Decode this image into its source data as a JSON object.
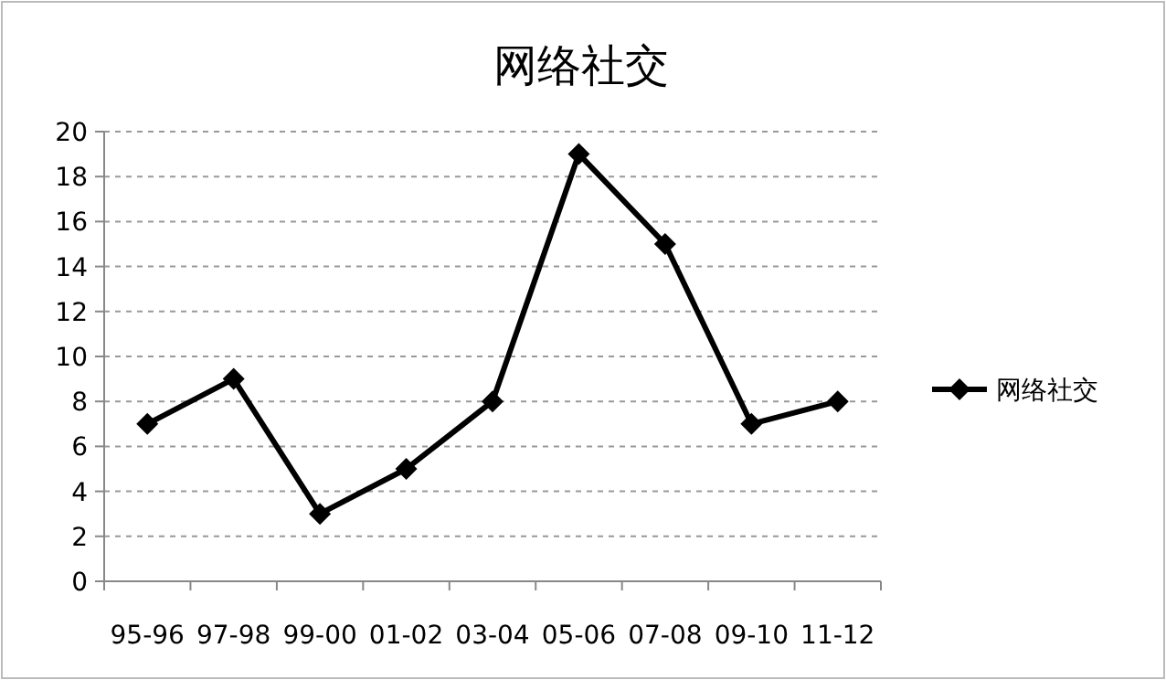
{
  "chart_data": {
    "type": "line",
    "title": "网络社交",
    "categories": [
      "95-96",
      "97-98",
      "99-00",
      "01-02",
      "03-04",
      "05-06",
      "07-08",
      "09-10",
      "11-12"
    ],
    "series": [
      {
        "name": "网络社交",
        "color": "#000000",
        "values": [
          7,
          9,
          3,
          5,
          8,
          19,
          15,
          7,
          8
        ]
      }
    ],
    "ylim": [
      0,
      20
    ],
    "yticks": [
      0,
      2,
      4,
      6,
      8,
      10,
      12,
      14,
      16,
      18,
      20
    ],
    "grid": "y",
    "legend": "right",
    "marker": "diamond",
    "line_style": "solid"
  }
}
